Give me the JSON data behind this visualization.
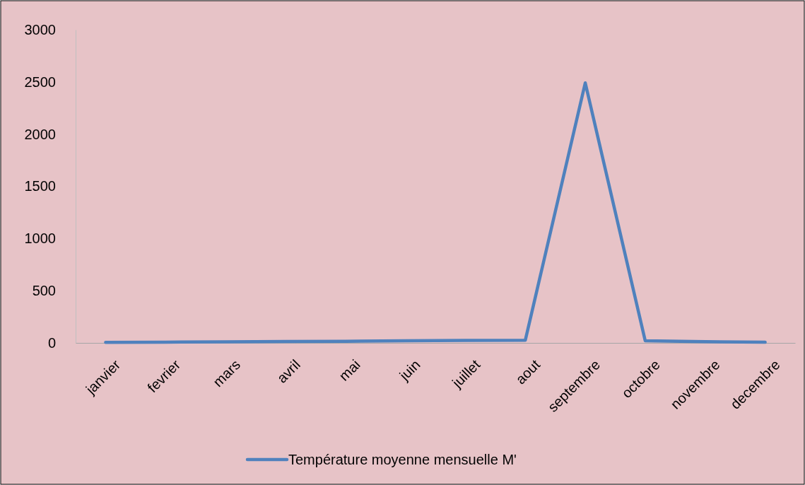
{
  "chart_data": {
    "type": "line",
    "categories": [
      "janvier",
      "fevrier",
      "mars",
      "avril",
      "mai",
      "juin",
      "juillet",
      "aout",
      "septembre",
      "octobre",
      "novembre",
      "decembre"
    ],
    "series": [
      {
        "name": "Température moyenne mensuelle M'",
        "color": "#4f81bd",
        "values": [
          5,
          7,
          10,
          13,
          16,
          20,
          24,
          25,
          2490,
          20,
          12,
          6
        ]
      }
    ],
    "ylim": [
      0,
      3000
    ],
    "yticks": [
      0,
      500,
      1000,
      1500,
      2000,
      2500,
      3000
    ],
    "grid": false,
    "legend": "bottom",
    "marker": "none",
    "line_style": "solid"
  }
}
